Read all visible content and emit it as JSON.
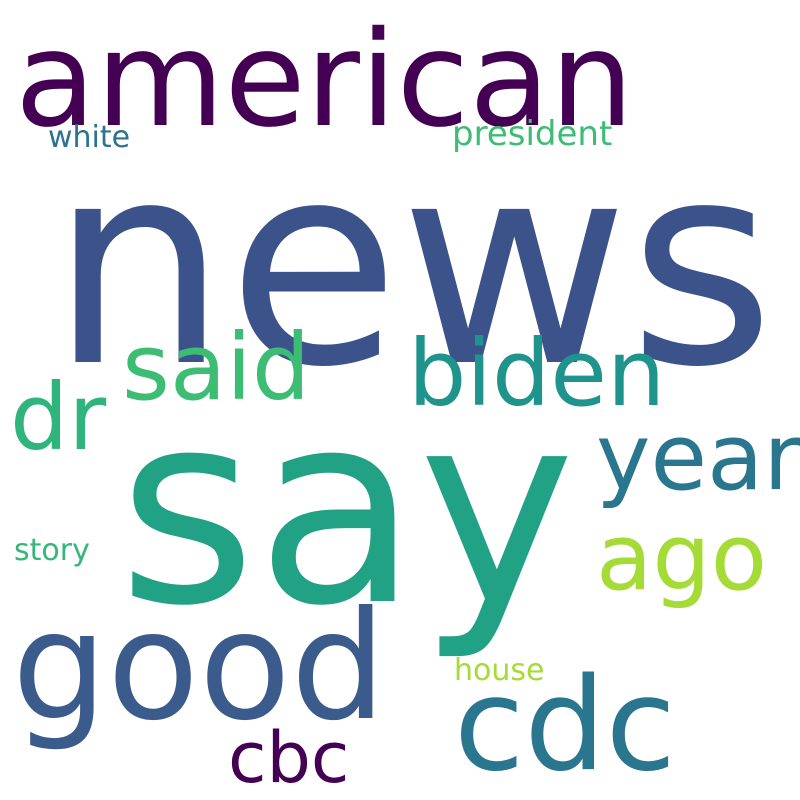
{
  "words": [
    {
      "text": "news",
      "color": "#3b528b"
    },
    {
      "text": "say",
      "color": "#21a285"
    },
    {
      "text": "american",
      "color": "#440154"
    },
    {
      "text": "good",
      "color": "#3b5b8c"
    },
    {
      "text": "biden",
      "color": "#1f948c"
    },
    {
      "text": "said",
      "color": "#3dbc74"
    },
    {
      "text": "cdc",
      "color": "#2a768e"
    },
    {
      "text": "year",
      "color": "#2a768e"
    },
    {
      "text": "ago",
      "color": "#a5db36"
    },
    {
      "text": "dr",
      "color": "#2fb47c"
    },
    {
      "text": "cbc",
      "color": "#440154"
    },
    {
      "text": "president",
      "color": "#3dbc74"
    },
    {
      "text": "white",
      "color": "#2c738e"
    },
    {
      "text": "story",
      "color": "#35b779"
    },
    {
      "text": "house",
      "color": "#a5db36"
    }
  ]
}
